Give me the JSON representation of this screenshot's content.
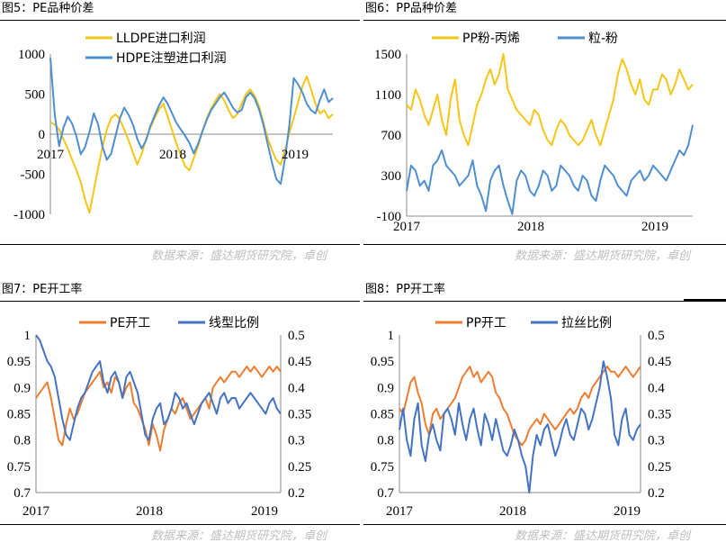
{
  "source_text": "数据来源：盛达期货研究院，卓创",
  "panels": [
    {
      "title": "图5：PE品种价差"
    },
    {
      "title": "图6：PP品种价差"
    },
    {
      "title": "图7：PE开工率"
    },
    {
      "title": "图8：PP开工率"
    }
  ],
  "chart_data": [
    {
      "type": "line",
      "title": "图5：PE品种价差",
      "x_labels": [
        "2017",
        "2018",
        "2019"
      ],
      "y_ticks": [
        1000,
        500,
        0,
        -500,
        -1000
      ],
      "ylim": [
        -1000,
        1000
      ],
      "legend_position": "top-left",
      "series": [
        {
          "name": "LLDPE进口利润",
          "color": "#f5c518",
          "values": [
            150,
            120,
            60,
            -60,
            -180,
            -320,
            -450,
            -600,
            -820,
            -980,
            -700,
            -420,
            -150,
            60,
            200,
            250,
            180,
            60,
            -80,
            -230,
            -380,
            -250,
            -60,
            80,
            200,
            310,
            380,
            220,
            50,
            -120,
            -260,
            -400,
            -450,
            -300,
            -150,
            40,
            200,
            320,
            420,
            500,
            420,
            300,
            200,
            250,
            380,
            500,
            560,
            480,
            350,
            150,
            -50,
            -200,
            -320,
            -380,
            -200,
            20,
            200,
            400,
            600,
            720,
            560,
            380,
            260,
            300,
            200,
            250
          ]
        },
        {
          "name": "HDPE注塑进口利润",
          "color": "#4f8fcf",
          "values": [
            950,
            250,
            -150,
            80,
            220,
            130,
            -30,
            -250,
            -160,
            30,
            260,
            120,
            -160,
            -320,
            -240,
            -20,
            200,
            330,
            240,
            120,
            -60,
            -180,
            -80,
            100,
            230,
            360,
            460,
            380,
            260,
            140,
            60,
            -20,
            -110,
            -240,
            -120,
            40,
            180,
            300,
            380,
            460,
            520,
            430,
            330,
            270,
            300,
            460,
            520,
            450,
            310,
            120,
            -120,
            -360,
            -560,
            -620,
            -300,
            120,
            700,
            620,
            520,
            380,
            300,
            260,
            420,
            560,
            400,
            450
          ]
        }
      ]
    },
    {
      "type": "line",
      "title": "图6：PP品种价差",
      "x_labels": [
        "2017",
        "2018",
        "2019"
      ],
      "y_ticks": [
        1500,
        1100,
        700,
        300,
        -100
      ],
      "ylim": [
        -100,
        1500
      ],
      "legend_position": "top",
      "series": [
        {
          "name": "PP粉-丙烯",
          "color": "#f5c518",
          "values": [
            1000,
            950,
            1150,
            1050,
            900,
            800,
            950,
            1100,
            850,
            700,
            1050,
            1250,
            850,
            700,
            600,
            800,
            1000,
            1100,
            1250,
            1350,
            1200,
            1300,
            1500,
            1150,
            1050,
            950,
            900,
            850,
            800,
            950,
            900,
            750,
            650,
            600,
            750,
            850,
            800,
            700,
            650,
            600,
            650,
            750,
            850,
            700,
            600,
            750,
            900,
            1050,
            1300,
            1450,
            1350,
            1200,
            1100,
            1250,
            1050,
            1000,
            1150,
            1150,
            1300,
            1250,
            1100,
            1200,
            1350,
            1250,
            1150,
            1200
          ]
        },
        {
          "name": "粒-粉",
          "color": "#4f8fcf",
          "values": [
            150,
            400,
            350,
            200,
            250,
            150,
            400,
            450,
            550,
            400,
            350,
            300,
            200,
            250,
            300,
            450,
            200,
            100,
            -50,
            250,
            350,
            400,
            200,
            50,
            -80,
            250,
            350,
            300,
            150,
            100,
            200,
            350,
            300,
            150,
            200,
            400,
            350,
            300,
            200,
            150,
            300,
            250,
            100,
            50,
            250,
            400,
            350,
            300,
            200,
            150,
            100,
            250,
            300,
            350,
            250,
            300,
            400,
            350,
            300,
            250,
            350,
            450,
            550,
            500,
            600,
            800
          ]
        }
      ]
    },
    {
      "type": "line",
      "title": "图7：PE开工率",
      "x_labels": [
        "2017",
        "2018",
        "2019"
      ],
      "y_left_ticks": [
        1,
        0.95,
        0.9,
        0.85,
        0.8,
        0.75,
        0.7
      ],
      "y_right_ticks": [
        0.5,
        0.45,
        0.4,
        0.35,
        0.3,
        0.25,
        0.2
      ],
      "ylim_left": [
        0.7,
        1
      ],
      "ylim_right": [
        0.2,
        0.5
      ],
      "legend_position": "top",
      "series": [
        {
          "name": "PE开工",
          "color": "#ed7d31",
          "axis": "left",
          "values": [
            0.88,
            0.89,
            0.9,
            0.91,
            0.88,
            0.84,
            0.8,
            0.79,
            0.83,
            0.86,
            0.84,
            0.85,
            0.87,
            0.89,
            0.9,
            0.91,
            0.92,
            0.93,
            0.9,
            0.91,
            0.89,
            0.92,
            0.91,
            0.88,
            0.9,
            0.91,
            0.87,
            0.86,
            0.84,
            0.82,
            0.79,
            0.83,
            0.81,
            0.78,
            0.82,
            0.84,
            0.86,
            0.85,
            0.87,
            0.88,
            0.86,
            0.84,
            0.85,
            0.86,
            0.87,
            0.88,
            0.86,
            0.9,
            0.91,
            0.92,
            0.91,
            0.92,
            0.93,
            0.93,
            0.92,
            0.93,
            0.94,
            0.93,
            0.94,
            0.93,
            0.92,
            0.93,
            0.94,
            0.93,
            0.94,
            0.93
          ]
        },
        {
          "name": "线型比例",
          "color": "#4472c4",
          "axis": "right",
          "values": [
            0.5,
            0.49,
            0.47,
            0.45,
            0.44,
            0.42,
            0.38,
            0.34,
            0.31,
            0.3,
            0.33,
            0.36,
            0.38,
            0.39,
            0.41,
            0.43,
            0.44,
            0.45,
            0.41,
            0.39,
            0.42,
            0.43,
            0.41,
            0.38,
            0.42,
            0.43,
            0.41,
            0.39,
            0.35,
            0.31,
            0.3,
            0.34,
            0.36,
            0.37,
            0.33,
            0.34,
            0.36,
            0.39,
            0.38,
            0.36,
            0.37,
            0.35,
            0.33,
            0.35,
            0.37,
            0.38,
            0.39,
            0.37,
            0.35,
            0.38,
            0.39,
            0.37,
            0.38,
            0.38,
            0.36,
            0.37,
            0.38,
            0.39,
            0.38,
            0.37,
            0.36,
            0.35,
            0.37,
            0.38,
            0.36,
            0.35
          ]
        }
      ]
    },
    {
      "type": "line",
      "title": "图8：PP开工率",
      "x_labels": [
        "2017",
        "2018",
        "2019"
      ],
      "y_left_ticks": [
        1,
        0.95,
        0.9,
        0.85,
        0.8,
        0.75,
        0.7
      ],
      "y_right_ticks": [
        0.5,
        0.45,
        0.4,
        0.35,
        0.3,
        0.25,
        0.2
      ],
      "ylim_left": [
        0.7,
        1
      ],
      "ylim_right": [
        0.2,
        0.5
      ],
      "legend_position": "top",
      "series": [
        {
          "name": "PP开工",
          "color": "#ed7d31",
          "axis": "left",
          "values": [
            0.86,
            0.85,
            0.88,
            0.91,
            0.92,
            0.89,
            0.87,
            0.83,
            0.81,
            0.85,
            0.86,
            0.84,
            0.85,
            0.86,
            0.87,
            0.88,
            0.9,
            0.92,
            0.93,
            0.94,
            0.92,
            0.93,
            0.91,
            0.92,
            0.93,
            0.92,
            0.89,
            0.88,
            0.86,
            0.85,
            0.83,
            0.81,
            0.8,
            0.79,
            0.8,
            0.82,
            0.83,
            0.84,
            0.83,
            0.85,
            0.84,
            0.83,
            0.82,
            0.83,
            0.84,
            0.85,
            0.86,
            0.85,
            0.86,
            0.88,
            0.89,
            0.88,
            0.9,
            0.91,
            0.92,
            0.93,
            0.94,
            0.93,
            0.93,
            0.92,
            0.93,
            0.94,
            0.93,
            0.92,
            0.93,
            0.94
          ]
        },
        {
          "name": "拉丝比例",
          "color": "#4472c4",
          "axis": "right",
          "values": [
            0.32,
            0.36,
            0.3,
            0.27,
            0.34,
            0.37,
            0.29,
            0.26,
            0.31,
            0.33,
            0.3,
            0.28,
            0.35,
            0.36,
            0.34,
            0.31,
            0.37,
            0.33,
            0.3,
            0.34,
            0.36,
            0.32,
            0.29,
            0.35,
            0.33,
            0.3,
            0.34,
            0.31,
            0.28,
            0.27,
            0.29,
            0.32,
            0.3,
            0.27,
            0.25,
            0.2,
            0.27,
            0.31,
            0.29,
            0.32,
            0.33,
            0.3,
            0.27,
            0.29,
            0.32,
            0.34,
            0.31,
            0.3,
            0.33,
            0.36,
            0.35,
            0.32,
            0.34,
            0.37,
            0.4,
            0.45,
            0.42,
            0.38,
            0.31,
            0.29,
            0.34,
            0.36,
            0.31,
            0.3,
            0.32,
            0.33
          ]
        }
      ]
    }
  ]
}
